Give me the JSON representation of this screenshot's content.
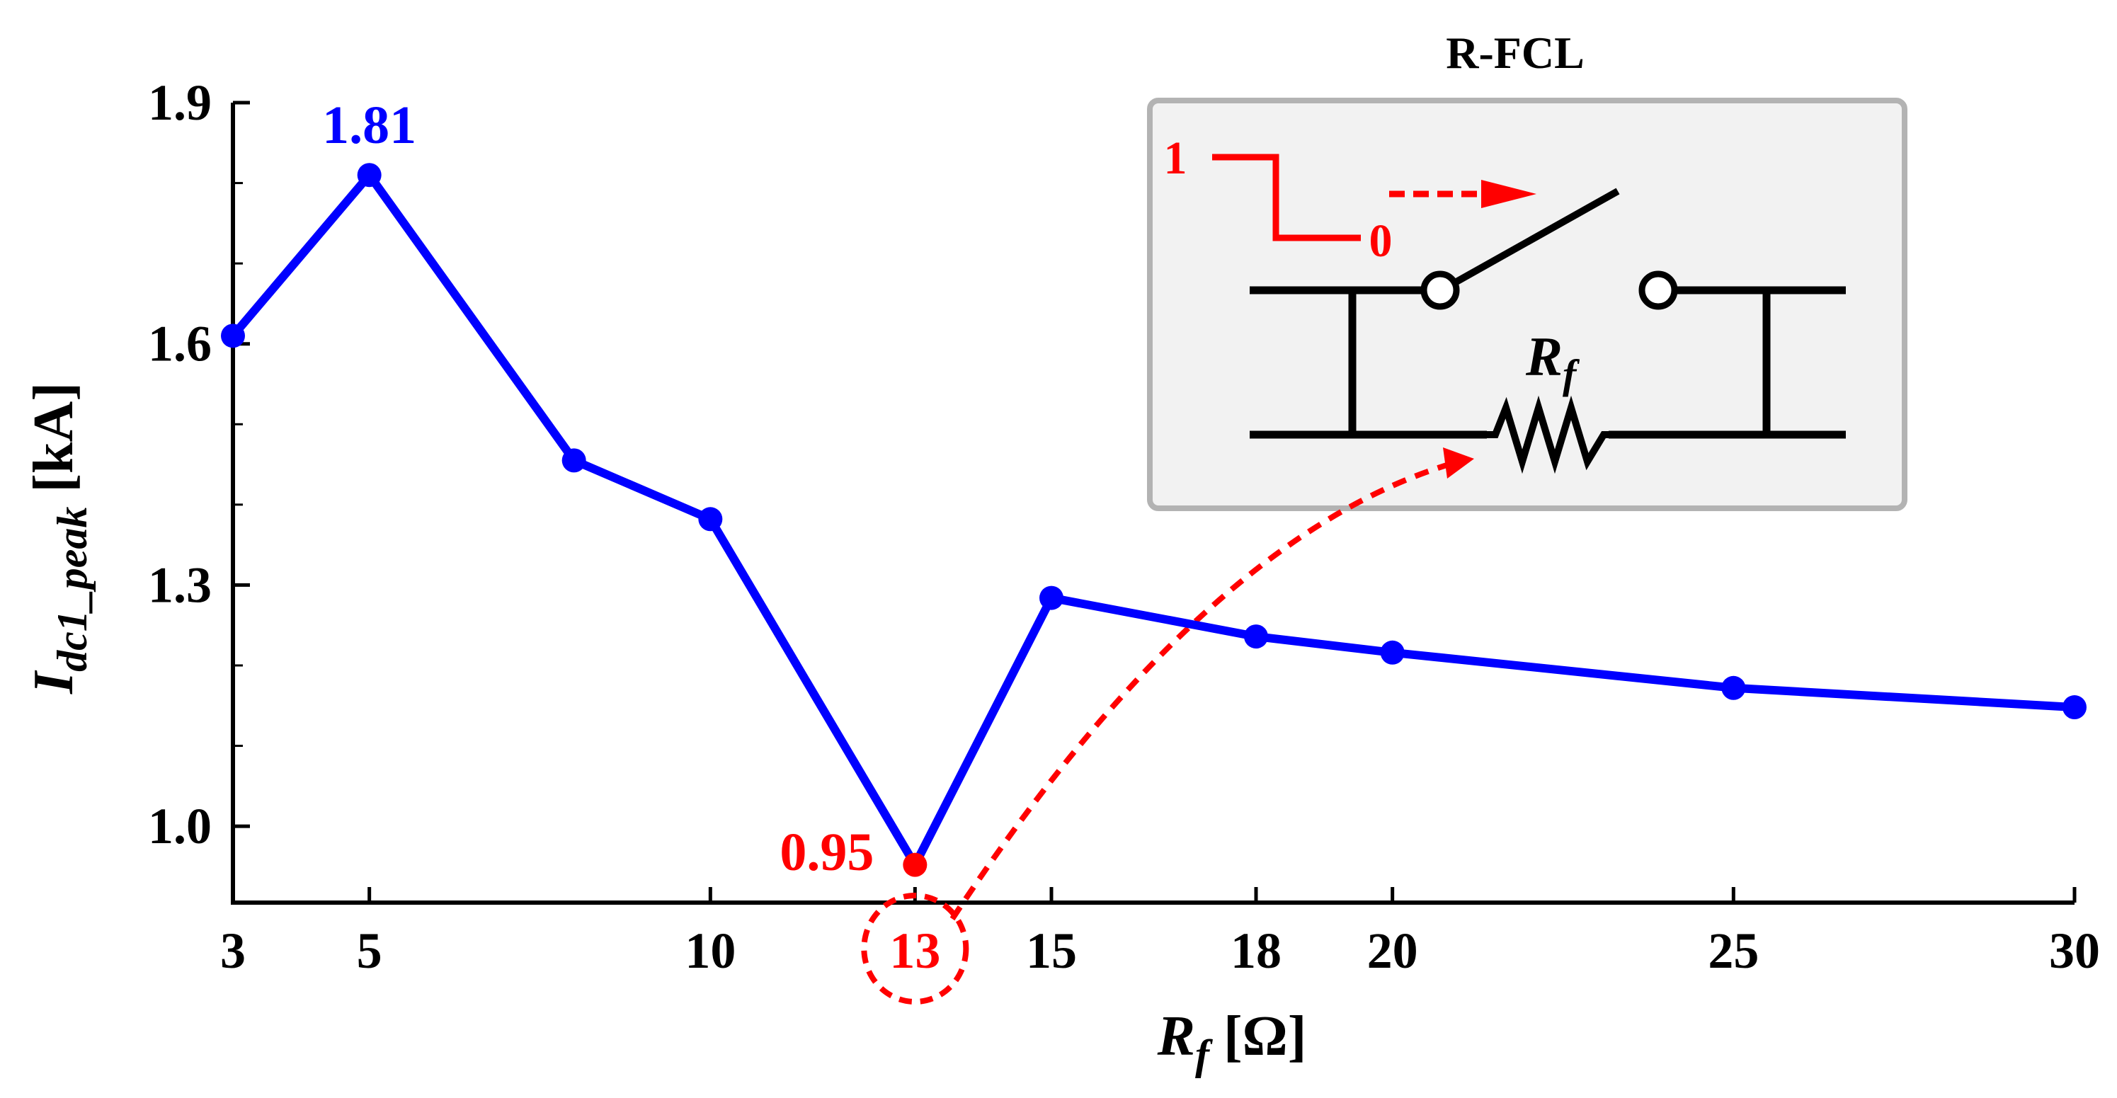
{
  "chart_data": {
    "type": "line",
    "title": "",
    "xlabel": {
      "main": "R",
      "sub": "f",
      "unit": " [Ω]"
    },
    "ylabel": {
      "main": "I",
      "sub": "dc1_peak",
      "unit": " [kA]"
    },
    "x_ticks": [
      3,
      5,
      10,
      13,
      15,
      18,
      20,
      25,
      30
    ],
    "y_ticks": [
      "1.0",
      "1.3",
      "1.6",
      "1.9"
    ],
    "xlim": [
      3,
      30
    ],
    "ylim": [
      0.905,
      1.9
    ],
    "y_minor_step": 0.1,
    "series": [
      {
        "name": "Idc1_peak",
        "color": "#0000ff",
        "x": [
          3,
          5,
          8,
          10,
          13,
          15,
          18,
          20,
          25,
          30
        ],
        "y": [
          1.61,
          1.81,
          1.455,
          1.382,
          0.952,
          1.284,
          1.236,
          1.216,
          1.172,
          1.148
        ]
      }
    ],
    "annotations": [
      {
        "text": "1.81",
        "x": 5,
        "y": 1.81,
        "color": "#0000ff"
      },
      {
        "text": "0.95",
        "x": 13,
        "y": 0.95,
        "color": "#ff0000"
      }
    ],
    "highlight": {
      "x": 13,
      "color": "#ff0000"
    }
  },
  "inset": {
    "title": "R-FCL",
    "step_high": "1",
    "step_low": "0",
    "resistor_label": {
      "main": "R",
      "sub": "f"
    }
  },
  "colors": {
    "series": "#0000ff",
    "highlight": "#ff0000",
    "axis": "#000000",
    "inset_fill": "#f2f2f2",
    "inset_border": "#b3b3b3"
  }
}
